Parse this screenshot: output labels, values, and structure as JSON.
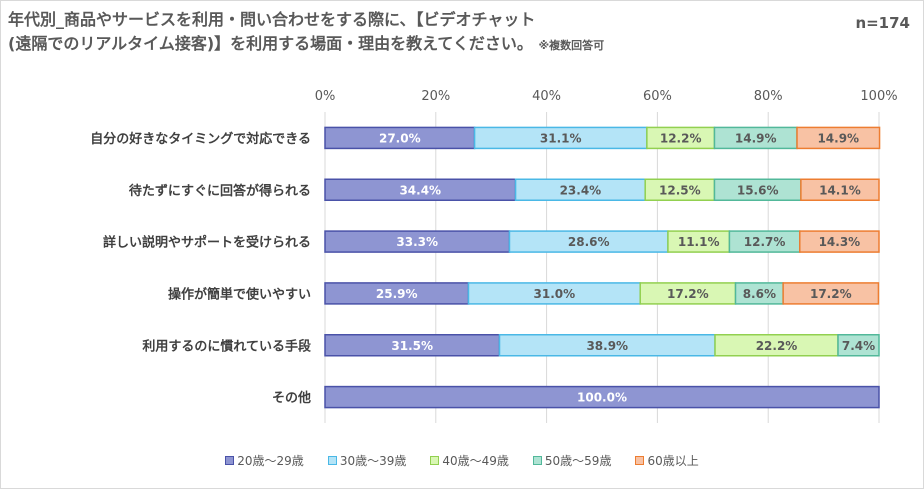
{
  "title": {
    "line1": "年代別_商品やサービスを利用・問い合わせをする際に、【ビデオチャット",
    "line2": "(遠隔でのリアルタイム接客)】を利用する場面・理由を教えてください。",
    "note": "※複数回答可"
  },
  "n_label": "n=174",
  "chart_data": {
    "type": "bar",
    "orientation": "horizontal-stacked-100",
    "x_ticks": [
      "0%",
      "20%",
      "40%",
      "60%",
      "80%",
      "100%"
    ],
    "xlim": [
      0,
      100
    ],
    "grid": true,
    "legend_position": "bottom",
    "categories": [
      "自分の好きなタイミングで対応できる",
      "待たずにすぐに回答が得られる",
      "詳しい説明やサポートを受けられる",
      "操作が簡単で使いやすい",
      "利用するのに慣れている手段",
      "その他"
    ],
    "series": [
      {
        "name": "20歳〜29歳",
        "color": "#8e95d2",
        "border": "#4a52a8",
        "label_color": "#ffffff",
        "values": [
          27.0,
          34.4,
          33.3,
          25.9,
          31.5,
          100.0
        ],
        "labels": [
          "27.0%",
          "34.4%",
          "33.3%",
          "25.9%",
          "31.5%",
          "100.0%"
        ]
      },
      {
        "name": "30歳〜39歳",
        "color": "#b4e4f7",
        "border": "#4ab8e6",
        "label_color": "#595959",
        "values": [
          31.1,
          23.4,
          28.6,
          31.0,
          38.9,
          0
        ],
        "labels": [
          "31.1%",
          "23.4%",
          "28.6%",
          "31.0%",
          "38.9%",
          ""
        ]
      },
      {
        "name": "40歳〜49歳",
        "color": "#d9f7b4",
        "border": "#92d050",
        "label_color": "#595959",
        "values": [
          12.2,
          12.5,
          11.1,
          17.2,
          22.2,
          0
        ],
        "labels": [
          "12.2%",
          "12.5%",
          "11.1%",
          "17.2%",
          "22.2%",
          ""
        ]
      },
      {
        "name": "50歳〜59歳",
        "color": "#aee3d3",
        "border": "#52b89a",
        "label_color": "#595959",
        "values": [
          14.9,
          15.6,
          12.7,
          8.6,
          7.4,
          0
        ],
        "labels": [
          "14.9%",
          "15.6%",
          "12.7%",
          "8.6%",
          "7.4%",
          ""
        ]
      },
      {
        "name": "60歳以上",
        "color": "#f8c2a4",
        "border": "#ed7d31",
        "label_color": "#595959",
        "values": [
          14.9,
          14.1,
          14.3,
          17.2,
          0,
          0
        ],
        "labels": [
          "14.9%",
          "14.1%",
          "14.3%",
          "17.2%",
          "",
          ""
        ]
      }
    ]
  }
}
